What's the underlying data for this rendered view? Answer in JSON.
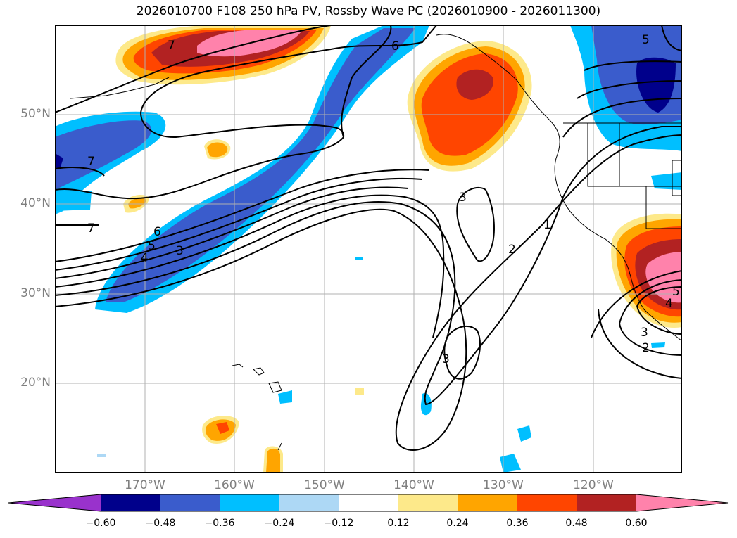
{
  "title": "2026010700 F108 250 hPa PV, Rossby Wave PC (2026010900 - 2026011300)",
  "map": {
    "longitude_labels": [
      "170°W",
      "160°W",
      "150°W",
      "140°W",
      "130°W",
      "120°W"
    ],
    "latitude_labels": [
      "50°N",
      "40°N",
      "30°N",
      "20°N"
    ],
    "contour_labels": [
      "7",
      "6",
      "5",
      "7",
      "7",
      "6",
      "5",
      "4",
      "3",
      "3",
      "2",
      "1",
      "3",
      "3",
      "2",
      "4",
      "5"
    ]
  },
  "colorbar": {
    "ticks": [
      "−0.60",
      "−0.48",
      "−0.36",
      "−0.24",
      "−0.12",
      "0.12",
      "0.24",
      "0.36",
      "0.48",
      "0.60"
    ],
    "colors": [
      "#9932cc",
      "#00008b",
      "#3a5ccc",
      "#00bfff",
      "#add8f5",
      "#ffffff",
      "#fde98a",
      "#ffa500",
      "#ff4500",
      "#b22222",
      "#ff82ab"
    ]
  }
}
